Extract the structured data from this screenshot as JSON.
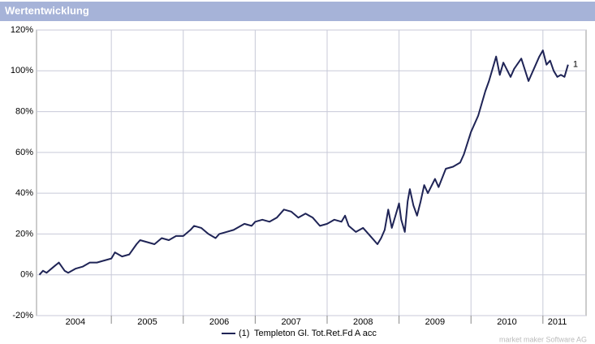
{
  "chart_data": {
    "type": "line",
    "title": "Wertentwicklung",
    "x": [
      2004.0,
      2004.05,
      2004.1,
      2004.2,
      2004.27,
      2004.35,
      2004.4,
      2004.5,
      2004.6,
      2004.7,
      2004.8,
      2004.9,
      2005.0,
      2005.05,
      2005.15,
      2005.25,
      2005.35,
      2005.4,
      2005.5,
      2005.6,
      2005.7,
      2005.8,
      2005.9,
      2006.0,
      2006.1,
      2006.15,
      2006.25,
      2006.35,
      2006.45,
      2006.5,
      2006.6,
      2006.7,
      2006.85,
      2006.95,
      2007.0,
      2007.1,
      2007.2,
      2007.3,
      2007.4,
      2007.5,
      2007.6,
      2007.7,
      2007.8,
      2007.9,
      2008.0,
      2008.1,
      2008.2,
      2008.25,
      2008.3,
      2008.4,
      2008.5,
      2008.6,
      2008.7,
      2008.75,
      2008.8,
      2008.85,
      2008.9,
      2008.95,
      2009.0,
      2009.03,
      2009.08,
      2009.12,
      2009.15,
      2009.2,
      2009.25,
      2009.3,
      2009.35,
      2009.4,
      2009.5,
      2009.55,
      2009.65,
      2009.75,
      2009.85,
      2009.9,
      2010.0,
      2010.1,
      2010.2,
      2010.25,
      2010.3,
      2010.35,
      2010.4,
      2010.45,
      2010.55,
      2010.6,
      2010.7,
      2010.8,
      2010.9,
      2010.95,
      2011.0,
      2011.05,
      2011.1,
      2011.15,
      2011.2,
      2011.25,
      2011.3,
      2011.35
    ],
    "series": [
      {
        "name": "Templeton Gl. Tot.Ret.Fd A acc",
        "legend_id": "(1)",
        "end_label": "1",
        "color": "#1f2456",
        "values": [
          0,
          2,
          1,
          4,
          6,
          2,
          1,
          3,
          4,
          6,
          6,
          7,
          8,
          11,
          9,
          10,
          15,
          17,
          16,
          15,
          18,
          17,
          19,
          19,
          22,
          24,
          23,
          20,
          18,
          20,
          21,
          22,
          25,
          24,
          26,
          27,
          26,
          28,
          32,
          31,
          28,
          30,
          28,
          24,
          25,
          27,
          26,
          29,
          24,
          21,
          23,
          19,
          15,
          18,
          22,
          32,
          23,
          29,
          35,
          27,
          21,
          36,
          42,
          34,
          29,
          36,
          44,
          40,
          47,
          43,
          52,
          53,
          55,
          59,
          70,
          78,
          90,
          95,
          101,
          107,
          98,
          104,
          97,
          101,
          106,
          95,
          103,
          107,
          110,
          103,
          105,
          100,
          97,
          98,
          97,
          103
        ]
      }
    ],
    "xlim": [
      2003.96,
      2011.6
    ],
    "xticks": [
      {
        "value": 2004.5,
        "label": "2004"
      },
      {
        "value": 2005.5,
        "label": "2005"
      },
      {
        "value": 2006.5,
        "label": "2006"
      },
      {
        "value": 2007.5,
        "label": "2007"
      },
      {
        "value": 2008.5,
        "label": "2008"
      },
      {
        "value": 2009.5,
        "label": "2009"
      },
      {
        "value": 2010.5,
        "label": "2010"
      },
      {
        "value": 2011.2,
        "label": "2011"
      }
    ],
    "x_gridlines": [
      2005,
      2006,
      2007,
      2008,
      2009,
      2010,
      2011
    ],
    "ylim": [
      -20,
      120
    ],
    "yticks": [
      {
        "value": -20,
        "label": "-20%"
      },
      {
        "value": 0,
        "label": "0%"
      },
      {
        "value": 20,
        "label": "20%"
      },
      {
        "value": 40,
        "label": "40%"
      },
      {
        "value": 60,
        "label": "60%"
      },
      {
        "value": 80,
        "label": "80%"
      },
      {
        "value": 100,
        "label": "100%"
      },
      {
        "value": 120,
        "label": "120%"
      }
    ],
    "grid": true,
    "footer": "market maker Software AG"
  }
}
